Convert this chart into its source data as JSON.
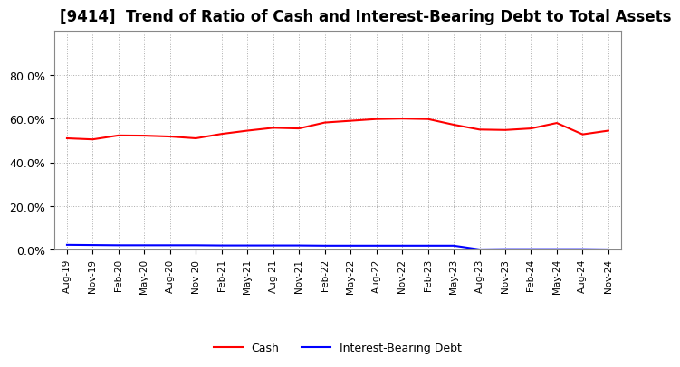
{
  "title": "[9414]  Trend of Ratio of Cash and Interest-Bearing Debt to Total Assets",
  "x_labels": [
    "Aug-19",
    "Nov-19",
    "Feb-20",
    "May-20",
    "Aug-20",
    "Nov-20",
    "Feb-21",
    "May-21",
    "Aug-21",
    "Nov-21",
    "Feb-22",
    "May-22",
    "Aug-22",
    "Nov-22",
    "Feb-23",
    "May-23",
    "Aug-23",
    "Nov-23",
    "Feb-24",
    "May-24",
    "Aug-24",
    "Nov-24"
  ],
  "cash": [
    0.51,
    0.505,
    0.523,
    0.522,
    0.518,
    0.51,
    0.53,
    0.545,
    0.558,
    0.555,
    0.582,
    0.59,
    0.598,
    0.6,
    0.598,
    0.572,
    0.55,
    0.548,
    0.555,
    0.58,
    0.528,
    0.545
  ],
  "interest_bearing_debt": [
    0.023,
    0.022,
    0.021,
    0.021,
    0.021,
    0.021,
    0.02,
    0.02,
    0.02,
    0.02,
    0.019,
    0.019,
    0.019,
    0.019,
    0.019,
    0.019,
    0.002,
    0.003,
    0.003,
    0.003,
    0.003,
    0.002
  ],
  "cash_color": "#FF0000",
  "debt_color": "#0000FF",
  "background_color": "#FFFFFF",
  "plot_bg_color": "#FFFFFF",
  "grid_color": "#AAAAAA",
  "ylim": [
    0.0,
    1.0
  ],
  "yticks": [
    0.0,
    0.2,
    0.4,
    0.6,
    0.8
  ],
  "legend_labels": [
    "Cash",
    "Interest-Bearing Debt"
  ],
  "title_fontsize": 12
}
